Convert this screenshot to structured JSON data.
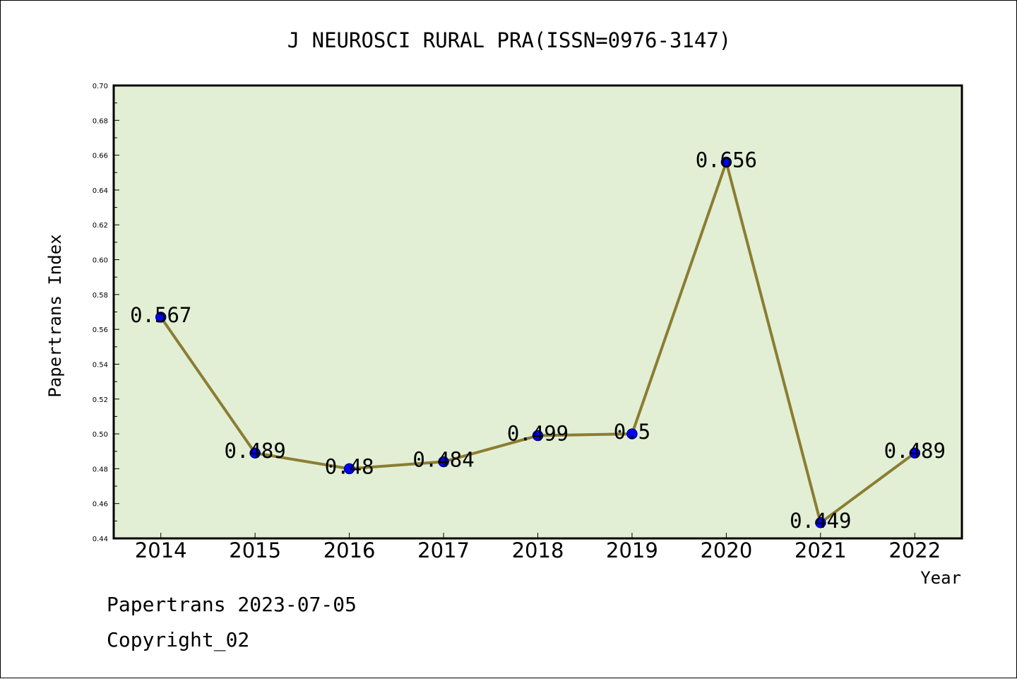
{
  "chart_data": {
    "type": "line",
    "title": "J NEUROSCI RURAL PRA(ISSN=0976-3147)",
    "xlabel": "Year",
    "ylabel": "Papertrans Index",
    "categories": [
      "2014",
      "2015",
      "2016",
      "2017",
      "2018",
      "2019",
      "2020",
      "2021",
      "2022"
    ],
    "values": [
      0.567,
      0.489,
      0.48,
      0.484,
      0.499,
      0.5,
      0.656,
      0.449,
      0.489
    ],
    "data_labels": [
      "0.567",
      "0.489",
      "0.48",
      "0.484",
      "0.499",
      "0.5",
      "0.656",
      "0.449",
      "0.489"
    ],
    "ylim": [
      0.44,
      0.7
    ],
    "yticks": [
      "0.44",
      "0.46",
      "0.48",
      "0.50",
      "0.52",
      "0.54",
      "0.56",
      "0.58",
      "0.60",
      "0.62",
      "0.64",
      "0.66",
      "0.68",
      "0.70"
    ],
    "grid": false,
    "colors": {
      "plot_background": "#e2efd4",
      "line": "#8b7d33",
      "marker_fill": "#0000ff",
      "marker_edge": "#00008b"
    }
  },
  "footer": {
    "source_line": "Papertrans 2023-07-05",
    "copyright_line": "Copyright_02"
  }
}
